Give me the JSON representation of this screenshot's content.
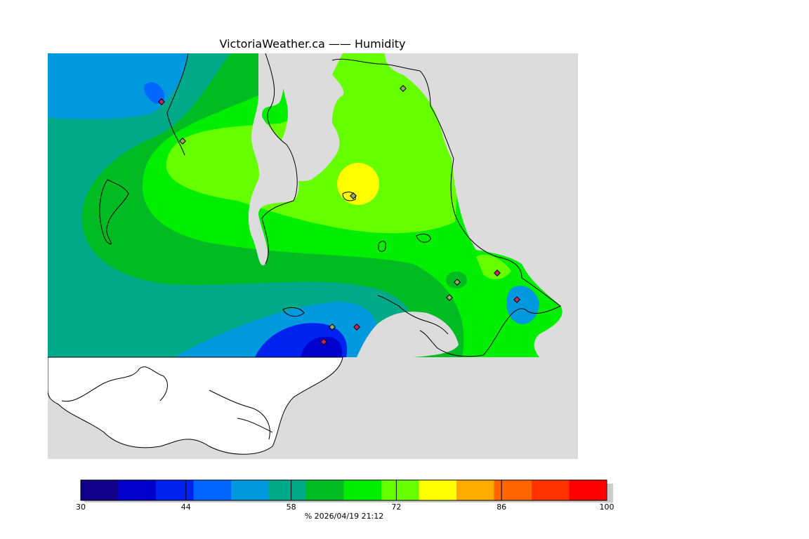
{
  "title": "VictoriaWeather.ca  ——  Humidity",
  "colors": {
    "background": "#dcdcdc",
    "land_outline": "#000000",
    "no_data": "#ffffff",
    "station_marker": "#cc2266"
  },
  "legend": {
    "bins": [
      "#110088",
      "#0000cc",
      "#0022ee",
      "#0066ff",
      "#0099dd",
      "#00aa88",
      "#00bb22",
      "#00ee00",
      "#66ff00",
      "#ffff00",
      "#ffaa00",
      "#ff6600",
      "#ff3300",
      "#ff0000"
    ],
    "ticks": [
      "30",
      "44",
      "58",
      "72",
      "86",
      "100"
    ],
    "unit": "%",
    "timestamp": "2026/04/19 21:12"
  },
  "footer_text": "%   2026/04/19 21:12"
}
